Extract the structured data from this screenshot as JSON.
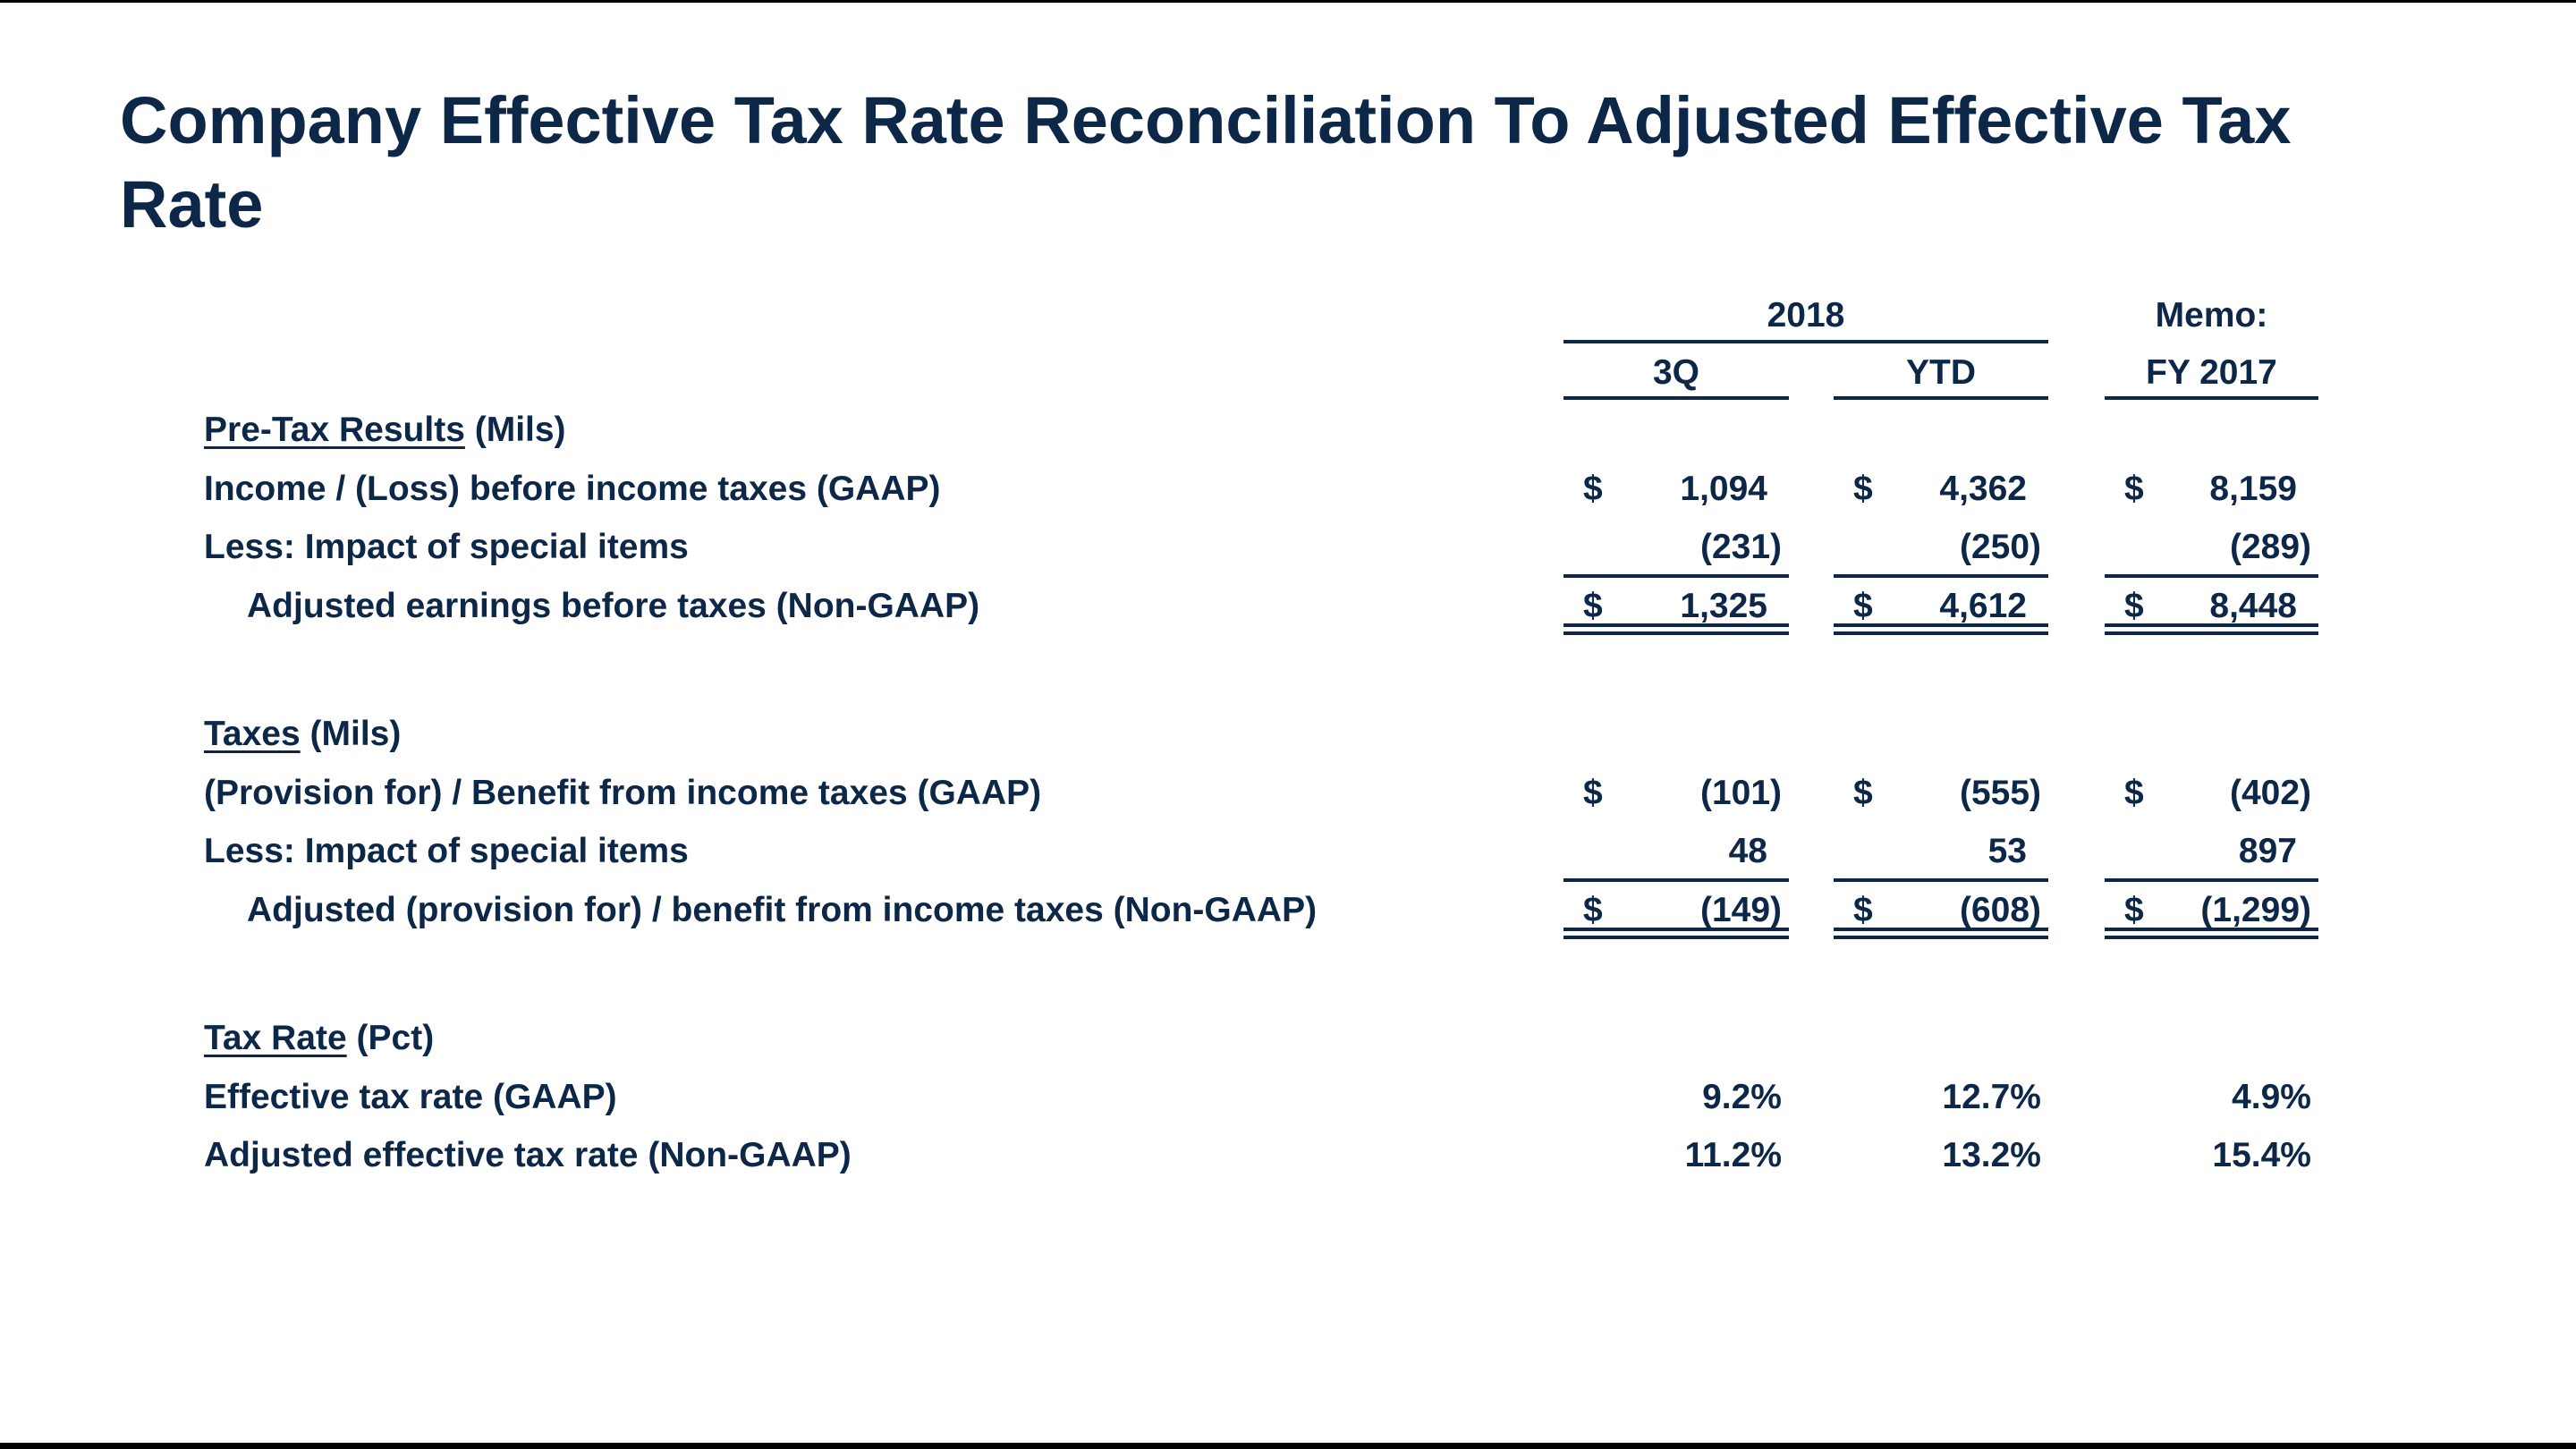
{
  "title": "Company Effective Tax Rate Reconciliation To Adjusted Effective Tax Rate",
  "header": {
    "group_2018": "2018",
    "memo": "Memo:",
    "columns": [
      "3Q",
      "YTD",
      "FY 2017"
    ]
  },
  "sections": [
    {
      "heading": "Pre-Tax Results",
      "unit": " (Mils)",
      "rows": [
        {
          "label": "Income / (Loss) before income taxes (GAAP)",
          "dollar": "$",
          "values": [
            "1,094",
            "4,362",
            "8,159"
          ]
        },
        {
          "label": "Less:  Impact of special items",
          "dollar": "",
          "values": [
            "(231)",
            "(250)",
            "(289)"
          ]
        },
        {
          "label": "Adjusted earnings before taxes (Non-GAAP)",
          "dollar": "$",
          "values": [
            "1,325",
            "4,612",
            "8,448"
          ]
        }
      ]
    },
    {
      "heading": "Taxes",
      "unit": " (Mils)",
      "rows": [
        {
          "label": "(Provision for) / Benefit from income taxes (GAAP)",
          "dollar": "$",
          "values": [
            "(101)",
            "(555)",
            "(402)"
          ]
        },
        {
          "label": "Less:  Impact of special items",
          "dollar": "",
          "values": [
            "48",
            "53",
            "897"
          ]
        },
        {
          "label": "Adjusted (provision for) / benefit from income taxes (Non-GAAP)",
          "dollar": "$",
          "values": [
            "(149)",
            "(608)",
            "(1,299)"
          ]
        }
      ]
    },
    {
      "heading": "Tax Rate",
      "unit": " (Pct)",
      "rows": [
        {
          "label": "Effective tax rate (GAAP)",
          "dollar": "",
          "values": [
            "9.2%",
            "12.7%",
            "4.9%"
          ]
        },
        {
          "label": "Adjusted effective tax rate (Non-GAAP)",
          "dollar": "",
          "values": [
            "11.2%",
            "13.2%",
            "15.4%"
          ]
        }
      ]
    }
  ]
}
